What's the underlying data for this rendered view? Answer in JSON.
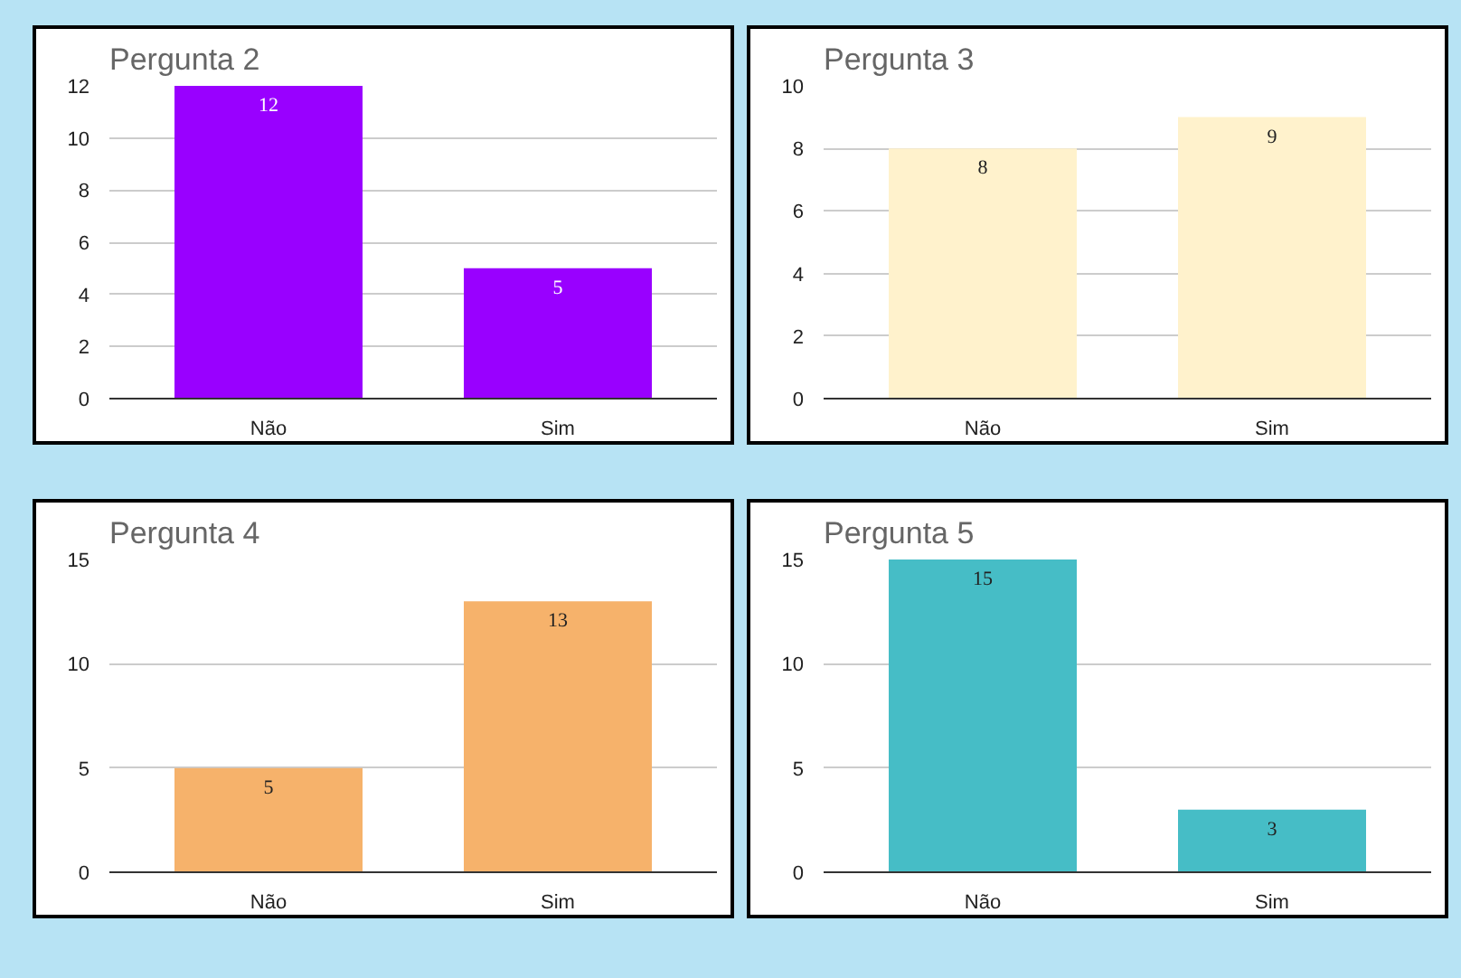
{
  "chart_data": [
    {
      "type": "bar",
      "title": "Pergunta 2",
      "categories": [
        "Não",
        "Sim"
      ],
      "values": [
        12,
        5
      ],
      "color": "#9900ff",
      "ylim": [
        0,
        12
      ],
      "yticks": [
        0,
        2,
        4,
        6,
        8,
        10,
        12
      ],
      "grid": "y",
      "data_labels": true
    },
    {
      "type": "bar",
      "title": "Pergunta 3",
      "categories": [
        "Não",
        "Sim"
      ],
      "values": [
        8,
        9
      ],
      "color": "#fff2cc",
      "ylim": [
        0,
        10
      ],
      "yticks": [
        0,
        2,
        4,
        6,
        8,
        10
      ],
      "grid": "y",
      "data_labels": true
    },
    {
      "type": "bar",
      "title": "Pergunta 4",
      "categories": [
        "Não",
        "Sim"
      ],
      "values": [
        5,
        13
      ],
      "color": "#f6b26b",
      "ylim": [
        0,
        15
      ],
      "yticks": [
        0,
        5,
        10,
        15
      ],
      "grid": "y",
      "data_labels": true
    },
    {
      "type": "bar",
      "title": "Pergunta 5",
      "categories": [
        "Não",
        "Sim"
      ],
      "values": [
        15,
        3
      ],
      "color": "#46bdc6",
      "ylim": [
        0,
        15
      ],
      "yticks": [
        0,
        5,
        10,
        15
      ],
      "grid": "y",
      "data_labels": true
    }
  ]
}
